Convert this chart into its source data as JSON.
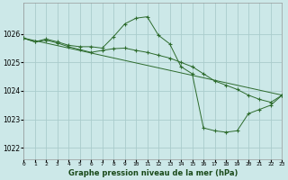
{
  "title": "Graphe pression niveau de la mer (hPa)",
  "bg_color": "#cce8e8",
  "grid_color": "#aacccc",
  "line_color": "#2d6b2d",
  "xlim": [
    0,
    23
  ],
  "ylim": [
    1021.6,
    1027.1
  ],
  "yticks": [
    1022,
    1023,
    1024,
    1025,
    1026
  ],
  "xtick_labels": [
    "0",
    "1",
    "2",
    "3",
    "4",
    "5",
    "6",
    "7",
    "8",
    "9",
    "10",
    "11",
    "12",
    "13",
    "14",
    "15",
    "16",
    "17",
    "18",
    "19",
    "20",
    "21",
    "22",
    "23"
  ],
  "series": [
    {
      "x": [
        0,
        1,
        2,
        3,
        4,
        5,
        6,
        7,
        8,
        9,
        10,
        11,
        12,
        13,
        14,
        15,
        16,
        17,
        18,
        19,
        20,
        21,
        22,
        23
      ],
      "y": [
        1025.85,
        1025.72,
        1025.82,
        1025.72,
        1025.6,
        1025.55,
        1025.55,
        1025.5,
        1025.9,
        1026.35,
        1026.55,
        1026.6,
        1025.95,
        1025.65,
        1024.85,
        1024.6,
        1022.7,
        1022.6,
        1022.55,
        1022.6,
        1023.2,
        1023.35,
        1023.5,
        1023.85
      ],
      "has_markers": true
    },
    {
      "x": [
        0,
        23
      ],
      "y": [
        1025.85,
        1023.85
      ],
      "has_markers": false
    },
    {
      "x": [
        0,
        1,
        2,
        3,
        4,
        5,
        6,
        7,
        8,
        9,
        10,
        11,
        12,
        13,
        14,
        15,
        16,
        17,
        18,
        19,
        20,
        21,
        22,
        23
      ],
      "y": [
        1025.85,
        1025.72,
        1025.78,
        1025.68,
        1025.55,
        1025.45,
        1025.35,
        1025.42,
        1025.48,
        1025.5,
        1025.42,
        1025.35,
        1025.25,
        1025.15,
        1025.0,
        1024.85,
        1024.6,
        1024.35,
        1024.2,
        1024.05,
        1023.85,
        1023.7,
        1023.6,
        1023.85
      ],
      "has_markers": true
    }
  ]
}
